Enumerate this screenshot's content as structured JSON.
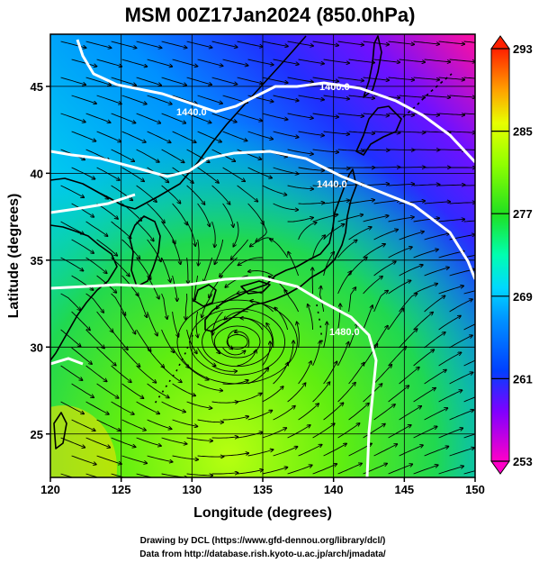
{
  "title": "MSM 00Z17Jan2024 (850.0hPa)",
  "x_axis": {
    "label": "Longitude (degrees)",
    "range": [
      120,
      150
    ],
    "ticks": [
      "120",
      "125",
      "130",
      "135",
      "140",
      "145",
      "150"
    ]
  },
  "y_axis": {
    "label": "Latitude  (degrees)",
    "range": [
      22.5,
      48
    ],
    "ticks": [
      "25",
      "30",
      "35",
      "40",
      "45"
    ]
  },
  "colorbar": {
    "range": [
      253,
      293
    ],
    "ticks": [
      "253",
      "261",
      "269",
      "277",
      "285",
      "293"
    ],
    "colors": [
      "#ff00c8",
      "#8000ff",
      "#0040ff",
      "#00c8ff",
      "#00ffc0",
      "#20e020",
      "#b0ff00",
      "#ffe000",
      "#ff8000",
      "#ff0000"
    ]
  },
  "contours": {
    "labels": [
      "1400.0",
      "1440.0",
      "1440.0",
      "1480.0"
    ],
    "color": "#ffffff"
  },
  "low_center": {
    "lon": 133.2,
    "lat": 30.3
  },
  "credits": {
    "line1": "Drawing by DCL (https://www.gfd-dennou.org/library/dcl/)",
    "line2": "Data from http://database.rish.kyoto-u.ac.jp/arch/jmadata/"
  }
}
